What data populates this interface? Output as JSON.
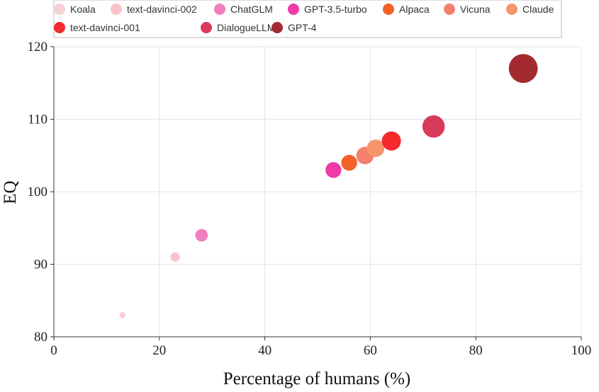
{
  "chart_data": {
    "type": "scatter",
    "title": "",
    "xlabel": "Percentage of humans (%)",
    "ylabel": "EQ",
    "xlim": [
      0,
      100
    ],
    "ylim": [
      80,
      120
    ],
    "x_ticks": [
      0,
      20,
      40,
      60,
      80,
      100
    ],
    "y_ticks": [
      80,
      90,
      100,
      110,
      120
    ],
    "grid": true,
    "legend_placement": "top",
    "series": [
      {
        "name": "Koala",
        "x": 13,
        "y": 83,
        "color": "#f6cfd4",
        "size": 1
      },
      {
        "name": "text-davinci-002",
        "x": 23,
        "y": 91,
        "color": "#f7c3c8",
        "size": 2
      },
      {
        "name": "ChatGLM",
        "x": 28,
        "y": 94,
        "color": "#f07fbf",
        "size": 3
      },
      {
        "name": "GPT-3.5-turbo",
        "x": 53,
        "y": 103,
        "color": "#ef3aa8",
        "size": 4
      },
      {
        "name": "Alpaca",
        "x": 56,
        "y": 104,
        "color": "#f46128",
        "size": 4
      },
      {
        "name": "Vicuna",
        "x": 59,
        "y": 105,
        "color": "#f3806e",
        "size": 4.5
      },
      {
        "name": "Claude",
        "x": 61,
        "y": 106,
        "color": "#f5956c",
        "size": 4.5
      },
      {
        "name": "text-davinci-001",
        "x": 64,
        "y": 107,
        "color": "#f42a2c",
        "size": 5
      },
      {
        "name": "DialogueLLM",
        "x": 72,
        "y": 109,
        "color": "#d93a5c",
        "size": 6
      },
      {
        "name": "GPT-4",
        "x": 89,
        "y": 117,
        "color": "#a32a2f",
        "size": 8
      }
    ]
  }
}
